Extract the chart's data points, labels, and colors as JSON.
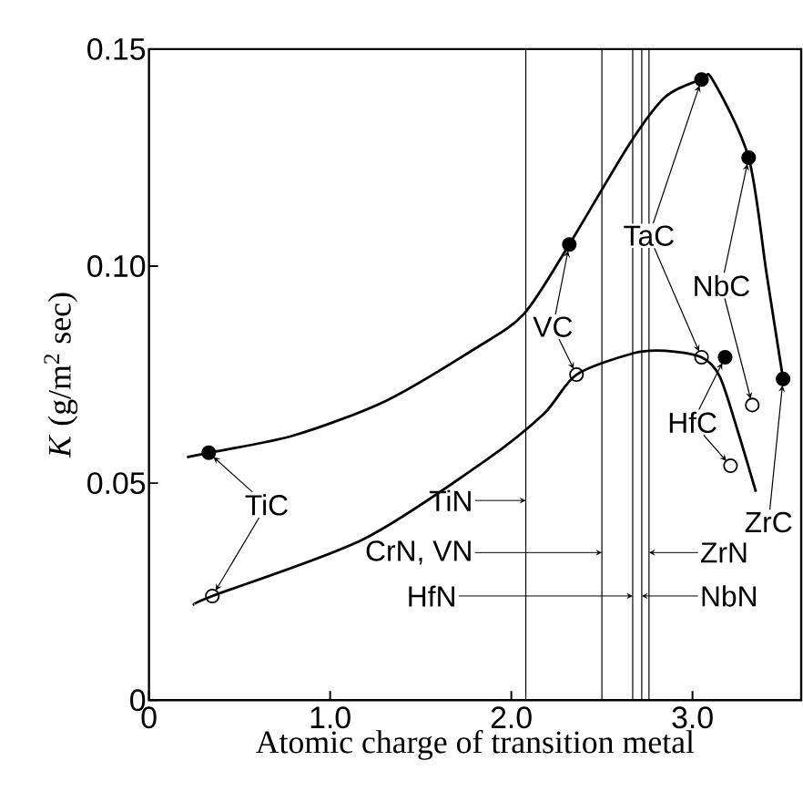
{
  "chart_data": {
    "type": "line",
    "xlabel": "Atomic charge of transition metal",
    "ylabel": "*K* (g/m$^{2}$ sec)",
    "xlim": [
      0,
      3.6
    ],
    "ylim": [
      0,
      0.15
    ],
    "xticks": [
      0,
      {
        "value": 1,
        "label": "1.0"
      },
      {
        "value": 2,
        "label": "2.0"
      },
      {
        "value": 3,
        "label": "3.0"
      }
    ],
    "yticks": [
      0,
      0.05,
      {
        "value": 0.1,
        "label": "0.10"
      },
      0.15
    ],
    "marker": "circle",
    "grid": false,
    "series": [
      {
        "color": "#000000",
        "marker": "none",
        "x": [
          0.21,
          0.33,
          0.8,
          1.31,
          1.8,
          2.07,
          2.32,
          2.65,
          2.85,
          3.05,
          3.11,
          3.31,
          3.41,
          3.5
        ],
        "values": [
          0.056,
          0.057,
          0.061,
          0.069,
          0.081,
          0.089,
          0.105,
          0.128,
          0.139,
          0.143,
          0.143,
          0.125,
          0.098,
          0.074
        ]
      },
      {
        "color": "#000000",
        "marker": "none",
        "x": [
          0.25,
          0.35,
          1.18,
          1.85,
          2.18,
          2.36,
          2.68,
          2.85,
          3.05,
          3.15,
          3.25,
          3.35
        ],
        "values": [
          0.022,
          0.024,
          0.037,
          0.055,
          0.066,
          0.075,
          0.08,
          0.0805,
          0.079,
          0.0746,
          0.062,
          0.048
        ]
      },
      {
        "type": "scatter",
        "color": "#000000",
        "x": [
          0.33,
          2.32,
          3.05,
          3.31,
          3.18,
          3.5
        ],
        "values": [
          0.057,
          0.105,
          0.143,
          0.125,
          0.079,
          0.074
        ]
      },
      {
        "type": "scatter",
        "color": "#000000",
        "x": [
          0.35,
          2.36,
          3.05,
          3.33,
          3.21
        ],
        "values": [
          0.024,
          0.075,
          0.079,
          0.068,
          0.054
        ]
      }
    ],
    "ref_lines": [
      {
        "axis": "x",
        "value": 2.08,
        "label": "TiN"
      },
      {
        "axis": "x",
        "value": 2.5,
        "label": "CrN, VN"
      },
      {
        "axis": "x",
        "value": 2.67,
        "label": "HfN"
      },
      {
        "axis": "x",
        "value": 2.72,
        "label": "NbN"
      },
      {
        "axis": "x",
        "value": 2.76,
        "label": "ZrN"
      }
    ],
    "annotations": [
      {
        "text": "TiC",
        "x": 0.33,
        "y": 0.057
      },
      {
        "text": "VC",
        "x": 2.32,
        "y": 0.105
      },
      {
        "text": "TaC",
        "x": 3.05,
        "y": 0.143
      },
      {
        "text": "NbC",
        "x": 3.31,
        "y": 0.125
      },
      {
        "text": "HfC",
        "x": 3.18,
        "y": 0.079
      },
      {
        "text": "ZrC",
        "x": 3.5,
        "y": 0.074
      }
    ]
  }
}
